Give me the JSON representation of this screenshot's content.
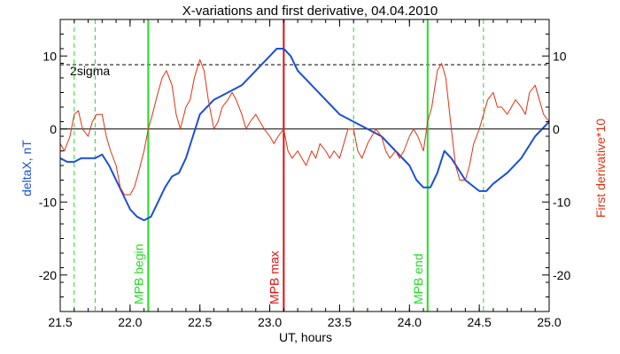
{
  "chart_data": {
    "type": "line",
    "title": "X-variations and first derivative, 04.04.2010",
    "xlabel": "UT, hours",
    "ylabel_left": "deltaX, nT",
    "ylabel_right": "First derivative*10",
    "xlim": [
      21.5,
      25.0
    ],
    "ylim": [
      -25,
      15
    ],
    "x_ticks": [
      "21.5",
      "22.0",
      "22.5",
      "23.0",
      "23.5",
      "24.0",
      "24.5",
      "25.0"
    ],
    "x_tick_values": [
      21.5,
      22.0,
      22.5,
      23.0,
      23.5,
      24.0,
      24.5,
      25.0
    ],
    "y_ticks": [
      "10",
      "0",
      "-10",
      "-20"
    ],
    "y_tick_values": [
      10,
      0,
      -10,
      -20
    ],
    "grid": false,
    "colors": {
      "deltaX": "#1a4fd6",
      "derivative": "#e03010",
      "mpb_begin_end": "#22dd22",
      "mpb_max": "#e01010",
      "threshold": "#000000"
    },
    "threshold": {
      "label": "2sigma",
      "value": 8.8
    },
    "zero_line": 0,
    "vertical_markers": [
      {
        "x": 22.13,
        "label": "MPB begin",
        "style": "solid",
        "color": "#22dd22"
      },
      {
        "x": 23.1,
        "label": "MPB max",
        "style": "solid",
        "color": "#e01010"
      },
      {
        "x": 24.13,
        "label": "MPB end",
        "style": "solid",
        "color": "#22dd22"
      },
      {
        "x": 21.6,
        "label": "",
        "style": "dashed",
        "color": "#22dd22"
      },
      {
        "x": 21.75,
        "label": "",
        "style": "dashed",
        "color": "#22dd22"
      },
      {
        "x": 23.6,
        "label": "",
        "style": "dashed",
        "color": "#22dd22"
      },
      {
        "x": 24.53,
        "label": "",
        "style": "dashed",
        "color": "#22dd22"
      }
    ],
    "series": [
      {
        "key": "deltaX",
        "x": [
          21.5,
          21.55,
          21.6,
          21.65,
          21.7,
          21.75,
          21.8,
          21.85,
          21.9,
          21.95,
          22.0,
          22.05,
          22.1,
          22.15,
          22.2,
          22.25,
          22.3,
          22.35,
          22.4,
          22.45,
          22.5,
          22.55,
          22.6,
          22.7,
          22.8,
          22.9,
          23.0,
          23.05,
          23.1,
          23.15,
          23.2,
          23.3,
          23.4,
          23.5,
          23.6,
          23.7,
          23.8,
          23.9,
          24.0,
          24.05,
          24.1,
          24.15,
          24.2,
          24.25,
          24.3,
          24.35,
          24.4,
          24.5,
          24.55,
          24.6,
          24.7,
          24.8,
          24.9,
          25.0
        ],
        "y": [
          -4,
          -4.5,
          -4.5,
          -4,
          -4,
          -4,
          -3.5,
          -5,
          -7,
          -9,
          -11,
          -12,
          -12.5,
          -12,
          -10,
          -8,
          -6.5,
          -6,
          -4,
          -1,
          2,
          3,
          4,
          5,
          6,
          8,
          10,
          11,
          11,
          10,
          8,
          6,
          4,
          2,
          1,
          0,
          -1,
          -3,
          -5,
          -7,
          -8,
          -8,
          -6,
          -3,
          -4,
          -5.5,
          -7,
          -8.5,
          -8.5,
          -7.5,
          -6,
          -4,
          -1,
          1
        ]
      },
      {
        "key": "derivative",
        "x": [
          21.5,
          21.53,
          21.57,
          21.6,
          21.63,
          21.66,
          21.7,
          21.73,
          21.76,
          21.8,
          21.83,
          21.86,
          21.9,
          21.93,
          21.96,
          22.0,
          22.03,
          22.06,
          22.1,
          22.13,
          22.16,
          22.2,
          22.23,
          22.26,
          22.3,
          22.33,
          22.36,
          22.4,
          22.43,
          22.46,
          22.5,
          22.53,
          22.56,
          22.6,
          22.63,
          22.66,
          22.7,
          22.73,
          22.76,
          22.8,
          22.83,
          22.86,
          22.9,
          22.93,
          22.96,
          23.0,
          23.03,
          23.06,
          23.1,
          23.13,
          23.16,
          23.2,
          23.23,
          23.26,
          23.3,
          23.33,
          23.36,
          23.4,
          23.43,
          23.46,
          23.5,
          23.53,
          23.56,
          23.6,
          23.63,
          23.66,
          23.7,
          23.73,
          23.76,
          23.8,
          23.83,
          23.86,
          23.9,
          23.93,
          23.96,
          24.0,
          24.03,
          24.06,
          24.1,
          24.13,
          24.16,
          24.2,
          24.23,
          24.26,
          24.3,
          24.33,
          24.36,
          24.4,
          24.43,
          24.46,
          24.5,
          24.53,
          24.56,
          24.6,
          24.63,
          24.66,
          24.7,
          24.73,
          24.76,
          24.8,
          24.83,
          24.86,
          24.9,
          24.93,
          24.96,
          25.0
        ],
        "y": [
          -2,
          -3,
          -1,
          2,
          2.5,
          0,
          -1,
          1,
          2,
          2,
          -1,
          -3,
          -5,
          -8,
          -9,
          -9,
          -8,
          -6,
          -3,
          0,
          2,
          5,
          7,
          8,
          6,
          2,
          0,
          3,
          4,
          7,
          9.5,
          8,
          4,
          0,
          1,
          3,
          4,
          5,
          4,
          2,
          0,
          1,
          2,
          1,
          0,
          -1,
          -2,
          -1,
          0,
          -3,
          -4,
          -3,
          -4,
          -5,
          -3,
          -4,
          -2,
          -3,
          -4,
          -3,
          -4,
          -2,
          0,
          0,
          -3,
          -4,
          -2,
          -1,
          0,
          -1,
          -3,
          -4,
          -3,
          -4,
          -3,
          -1,
          0,
          -1,
          -3,
          1,
          3,
          8,
          9,
          7,
          0,
          -5,
          -7,
          -7,
          -5,
          -2,
          0,
          2,
          4,
          5,
          3,
          3,
          2,
          3,
          4,
          3,
          2,
          5,
          6,
          4,
          2,
          1
        ]
      }
    ]
  }
}
